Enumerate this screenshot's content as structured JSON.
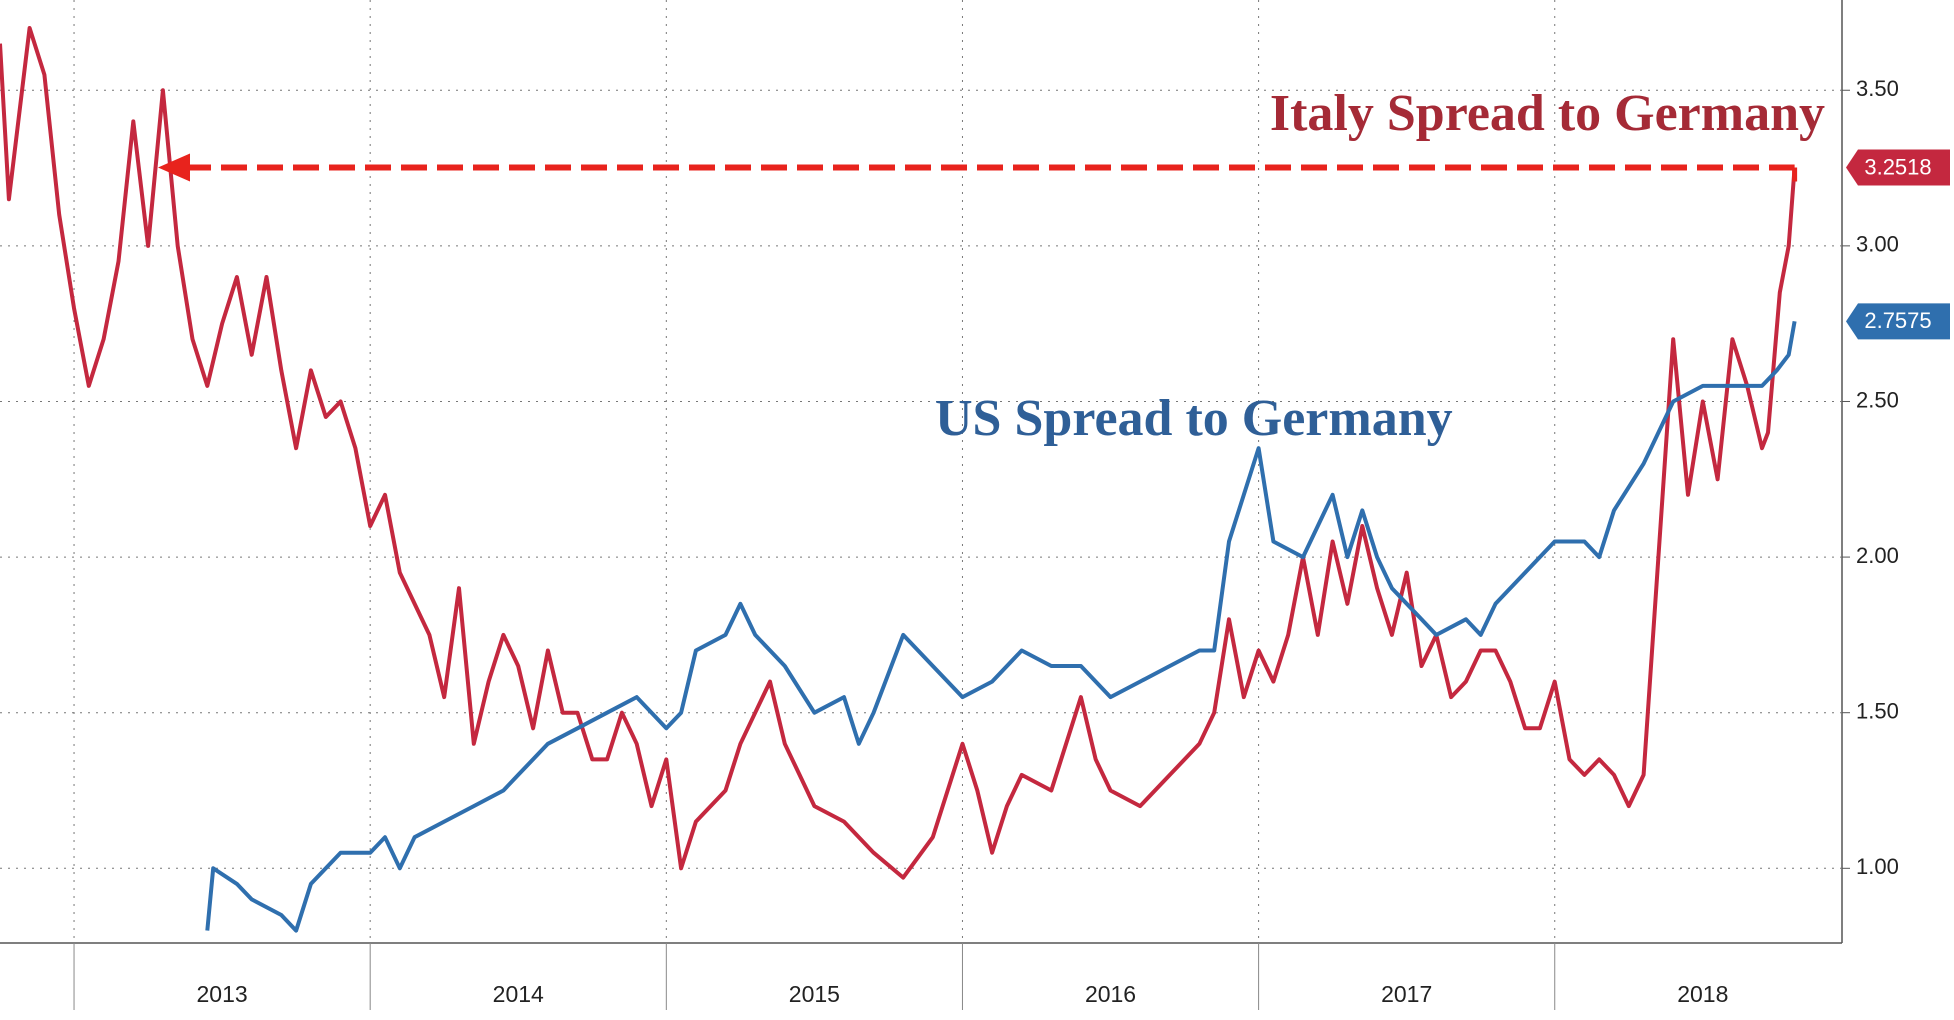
{
  "chart_data": {
    "type": "line",
    "xlim": [
      2012.75,
      2018.97
    ],
    "xticks": [
      2013,
      2014,
      2015,
      2016,
      2017,
      2018
    ],
    "xlabels": [
      {
        "value": 2013.5,
        "label": "2013"
      },
      {
        "value": 2014.5,
        "label": "2014"
      },
      {
        "value": 2015.5,
        "label": "2015"
      },
      {
        "value": 2016.5,
        "label": "2016"
      },
      {
        "value": 2017.5,
        "label": "2017"
      },
      {
        "value": 2018.5,
        "label": "2018"
      }
    ],
    "ylim": [
      0.76,
      3.79
    ],
    "yticks": [
      {
        "value": 1.0,
        "label": "1.00"
      },
      {
        "value": 1.5,
        "label": "1.50"
      },
      {
        "value": 2.0,
        "label": "2.00"
      },
      {
        "value": 2.5,
        "label": "2.50"
      },
      {
        "value": 3.0,
        "label": "3.00"
      },
      {
        "value": 3.5,
        "label": "3.50"
      }
    ],
    "grid": true,
    "series": [
      {
        "name": "Italy Spread to Germany",
        "color": "#c4283f",
        "x": [
          2012.75,
          2012.78,
          2012.85,
          2012.9,
          2012.95,
          2013.0,
          2013.05,
          2013.1,
          2013.15,
          2013.2,
          2013.25,
          2013.3,
          2013.35,
          2013.4,
          2013.45,
          2013.5,
          2013.55,
          2013.6,
          2013.65,
          2013.7,
          2013.75,
          2013.8,
          2013.85,
          2013.9,
          2013.95,
          2014.0,
          2014.05,
          2014.1,
          2014.2,
          2014.25,
          2014.3,
          2014.35,
          2014.4,
          2014.45,
          2014.5,
          2014.55,
          2014.6,
          2014.65,
          2014.7,
          2014.75,
          2014.8,
          2014.85,
          2014.9,
          2014.95,
          2015.0,
          2015.05,
          2015.1,
          2015.2,
          2015.25,
          2015.3,
          2015.35,
          2015.4,
          2015.45,
          2015.5,
          2015.6,
          2015.7,
          2015.8,
          2015.9,
          2016.0,
          2016.05,
          2016.1,
          2016.15,
          2016.2,
          2016.3,
          2016.4,
          2016.45,
          2016.5,
          2016.6,
          2016.7,
          2016.8,
          2016.85,
          2016.9,
          2016.95,
          2017.0,
          2017.05,
          2017.1,
          2017.15,
          2017.2,
          2017.25,
          2017.3,
          2017.35,
          2017.4,
          2017.45,
          2017.5,
          2017.55,
          2017.6,
          2017.65,
          2017.7,
          2017.75,
          2017.8,
          2017.85,
          2017.9,
          2017.95,
          2018.0,
          2018.05,
          2018.1,
          2018.15,
          2018.2,
          2018.25,
          2018.3,
          2018.35,
          2018.4,
          2018.45,
          2018.5,
          2018.55,
          2018.6,
          2018.65,
          2018.7,
          2018.72,
          2018.76,
          2018.79,
          2018.81
        ],
        "values": [
          3.65,
          3.15,
          3.7,
          3.55,
          3.1,
          2.8,
          2.55,
          2.7,
          2.95,
          3.4,
          3.0,
          3.5,
          3.0,
          2.7,
          2.55,
          2.75,
          2.9,
          2.65,
          2.9,
          2.6,
          2.35,
          2.6,
          2.45,
          2.5,
          2.35,
          2.1,
          2.2,
          1.95,
          1.75,
          1.55,
          1.9,
          1.4,
          1.6,
          1.75,
          1.65,
          1.45,
          1.7,
          1.5,
          1.5,
          1.35,
          1.35,
          1.5,
          1.4,
          1.2,
          1.35,
          1.0,
          1.15,
          1.25,
          1.4,
          1.5,
          1.6,
          1.4,
          1.3,
          1.2,
          1.15,
          1.05,
          0.97,
          1.1,
          1.4,
          1.25,
          1.05,
          1.2,
          1.3,
          1.25,
          1.55,
          1.35,
          1.25,
          1.2,
          1.3,
          1.4,
          1.5,
          1.8,
          1.55,
          1.7,
          1.6,
          1.75,
          2.0,
          1.75,
          2.05,
          1.85,
          2.1,
          1.9,
          1.75,
          1.95,
          1.65,
          1.75,
          1.55,
          1.6,
          1.7,
          1.7,
          1.6,
          1.45,
          1.45,
          1.6,
          1.35,
          1.3,
          1.35,
          1.3,
          1.2,
          1.3,
          2.0,
          2.7,
          2.2,
          2.5,
          2.25,
          2.7,
          2.55,
          2.35,
          2.4,
          2.85,
          3.0,
          3.2518
        ]
      },
      {
        "name": "US Spread to Germany",
        "color": "#2f6fae",
        "x": [
          2013.45,
          2013.47,
          2013.55,
          2013.6,
          2013.7,
          2013.75,
          2013.8,
          2013.9,
          2014.0,
          2014.05,
          2014.1,
          2014.15,
          2014.25,
          2014.35,
          2014.45,
          2014.5,
          2014.6,
          2014.7,
          2014.8,
          2014.9,
          2015.0,
          2015.05,
          2015.1,
          2015.2,
          2015.25,
          2015.3,
          2015.4,
          2015.5,
          2015.6,
          2015.65,
          2015.7,
          2015.8,
          2015.9,
          2016.0,
          2016.1,
          2016.2,
          2016.3,
          2016.4,
          2016.5,
          2016.6,
          2016.7,
          2016.8,
          2016.85,
          2016.9,
          2016.95,
          2017.0,
          2017.05,
          2017.15,
          2017.2,
          2017.25,
          2017.3,
          2017.35,
          2017.4,
          2017.45,
          2017.55,
          2017.6,
          2017.7,
          2017.75,
          2017.8,
          2017.9,
          2018.0,
          2018.1,
          2018.15,
          2018.2,
          2018.3,
          2018.4,
          2018.5,
          2018.6,
          2018.7,
          2018.75,
          2018.79,
          2018.81
        ],
        "values": [
          0.8,
          1.0,
          0.95,
          0.9,
          0.85,
          0.8,
          0.95,
          1.05,
          1.05,
          1.1,
          1.0,
          1.1,
          1.15,
          1.2,
          1.25,
          1.3,
          1.4,
          1.45,
          1.5,
          1.55,
          1.45,
          1.5,
          1.7,
          1.75,
          1.85,
          1.75,
          1.65,
          1.5,
          1.55,
          1.4,
          1.5,
          1.75,
          1.65,
          1.55,
          1.6,
          1.7,
          1.65,
          1.65,
          1.55,
          1.6,
          1.65,
          1.7,
          1.7,
          2.05,
          2.2,
          2.35,
          2.05,
          2.0,
          2.1,
          2.2,
          2.0,
          2.15,
          2.0,
          1.9,
          1.8,
          1.75,
          1.8,
          1.75,
          1.85,
          1.95,
          2.05,
          2.05,
          2.0,
          2.15,
          2.3,
          2.5,
          2.55,
          2.55,
          2.55,
          2.6,
          2.65,
          2.7575
        ]
      }
    ]
  }
}
